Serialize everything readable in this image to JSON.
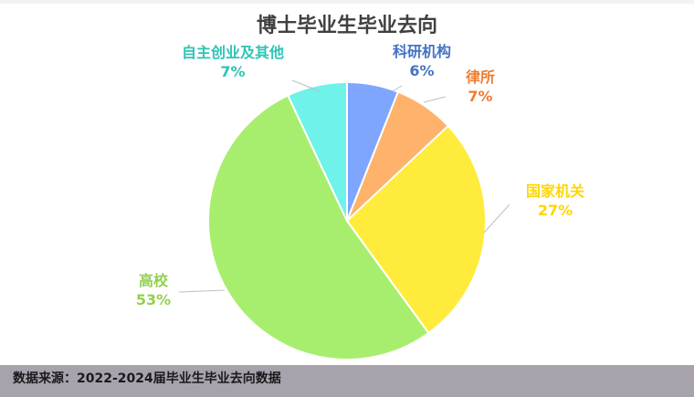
{
  "chart_data": {
    "type": "pie",
    "title": "博士毕业生毕业去向",
    "slices": [
      {
        "label": "科研机构",
        "value": 6,
        "value_text": "6%",
        "color": "#7ea6ff",
        "label_color": "#4472c4",
        "edge_color": "#4472c4"
      },
      {
        "label": "律所",
        "value": 7,
        "value_text": "7%",
        "color": "#ffb26b",
        "label_color": "#ed7d31",
        "edge_color": "#ed7d31"
      },
      {
        "label": "国家机关",
        "value": 27,
        "value_text": "27%",
        "color": "#ffeb3b",
        "label_color": "#ffd600",
        "edge_color": "#ffd600"
      },
      {
        "label": "高校",
        "value": 53,
        "value_text": "53%",
        "color": "#a8ee6e",
        "label_color": "#92d050",
        "edge_color": "#70c040"
      },
      {
        "label": "自主创业及其他",
        "value": 7,
        "value_text": "7%",
        "color": "#6ef2ea",
        "label_color": "#2ec4b6",
        "edge_color": "#2ec4b6"
      }
    ]
  },
  "footer": {
    "source_text": "数据来源：2022-2024届毕业生毕业去向数据"
  }
}
